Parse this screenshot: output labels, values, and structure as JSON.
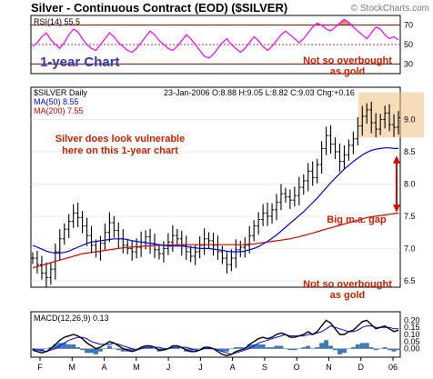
{
  "header": {
    "title": "Silver - Continuous Contract (EOD) ($SILVER)",
    "credit": "© StockCharts.com"
  },
  "chart_data": [
    {
      "panel": "rsi",
      "type": "line",
      "label": "RSI(14) 55.5",
      "ylim": [
        20,
        80
      ],
      "ticks": [
        30,
        50,
        70
      ],
      "levels": [
        30,
        70
      ],
      "color": "#ff00ff",
      "overbought_fill": "#c8966e",
      "annotations": [
        "1-year Chart",
        "Not so overbought",
        "as gold"
      ],
      "values": [
        48,
        52,
        58,
        62,
        55,
        50,
        46,
        52,
        60,
        66,
        63,
        56,
        50,
        46,
        44,
        50,
        56,
        62,
        58,
        52,
        48,
        44,
        42,
        46,
        52,
        58,
        64,
        60,
        54,
        50,
        46,
        44,
        48,
        54,
        60,
        56,
        50,
        44,
        38,
        36,
        40,
        46,
        52,
        56,
        50,
        46,
        42,
        46,
        52,
        58,
        54,
        48,
        44,
        48,
        54,
        60,
        64,
        60,
        56,
        52,
        56,
        62,
        68,
        72,
        70,
        66,
        64,
        68,
        72,
        76,
        73,
        68,
        64,
        60,
        56,
        62,
        68,
        66,
        60,
        56,
        58,
        55
      ]
    },
    {
      "panel": "price",
      "type": "bar",
      "legend": [
        "$SILVER Daily",
        "MA(50) 8.55",
        "MA(200) 7.55"
      ],
      "quote": "23-Jan-2006  O:8.88  H:9.05  L:8.82  C:9.03  Chg:+0.16",
      "ylim": [
        6.4,
        9.5
      ],
      "ticks": [
        6.5,
        7.0,
        7.5,
        8.0,
        8.5,
        9.0
      ],
      "colors": {
        "price": "#000000",
        "ma50": "#0000ff",
        "ma200": "#dd0000",
        "annotation": "#cc2200",
        "highlight": "#f0c080"
      },
      "annotations": [
        "Silver does look vulnerable",
        "here on this 1-year chart",
        "Big m.a. gap"
      ],
      "close": [
        6.85,
        6.75,
        6.62,
        6.55,
        6.68,
        6.95,
        7.15,
        7.3,
        7.42,
        7.55,
        7.48,
        7.35,
        7.2,
        7.05,
        6.95,
        7.08,
        7.25,
        7.4,
        7.28,
        7.15,
        7.05,
        7.0,
        6.95,
        7.02,
        7.1,
        7.18,
        7.08,
        6.98,
        6.92,
        7.0,
        7.1,
        7.2,
        7.15,
        7.05,
        6.95,
        6.88,
        6.95,
        7.05,
        7.15,
        7.12,
        7.05,
        6.95,
        6.85,
        6.75,
        6.85,
        6.98,
        7.02,
        7.05,
        7.2,
        7.35,
        7.45,
        7.55,
        7.5,
        7.6,
        7.72,
        7.85,
        7.8,
        7.75,
        7.82,
        7.95,
        8.05,
        8.2,
        8.1,
        8.3,
        8.55,
        8.75,
        8.62,
        8.5,
        8.35,
        8.45,
        8.6,
        8.7,
        8.9,
        9.05,
        9.15,
        8.95,
        8.85,
        9.0,
        9.1,
        8.92,
        8.88,
        9.03
      ],
      "ma50": [
        7.05,
        7.02,
        6.99,
        6.96,
        6.94,
        6.93,
        6.93,
        6.94,
        6.96,
        6.99,
        7.02,
        7.05,
        7.08,
        7.1,
        7.11,
        7.12,
        7.13,
        7.14,
        7.15,
        7.15,
        7.15,
        7.14,
        7.12,
        7.11,
        7.1,
        7.09,
        7.08,
        7.07,
        7.06,
        7.05,
        7.04,
        7.04,
        7.04,
        7.04,
        7.03,
        7.02,
        7.01,
        7.0,
        7.0,
        7.0,
        6.99,
        6.98,
        6.97,
        6.96,
        6.95,
        6.95,
        6.95,
        6.96,
        6.98,
        7.0,
        7.03,
        7.07,
        7.11,
        7.16,
        7.21,
        7.27,
        7.33,
        7.39,
        7.45,
        7.51,
        7.57,
        7.64,
        7.71,
        7.78,
        7.86,
        7.94,
        8.02,
        8.09,
        8.16,
        8.23,
        8.29,
        8.35,
        8.4,
        8.45,
        8.49,
        8.52,
        8.54,
        8.55,
        8.56,
        8.56,
        8.55,
        8.55
      ],
      "ma200": [
        6.7,
        6.72,
        6.74,
        6.76,
        6.78,
        6.8,
        6.82,
        6.84,
        6.86,
        6.88,
        6.9,
        6.92,
        6.93,
        6.94,
        6.95,
        6.96,
        6.97,
        6.98,
        6.99,
        7.0,
        7.01,
        7.02,
        7.02,
        7.03,
        7.03,
        7.04,
        7.04,
        7.05,
        7.05,
        7.05,
        7.05,
        7.06,
        7.06,
        7.06,
        7.06,
        7.06,
        7.06,
        7.06,
        7.06,
        7.06,
        7.06,
        7.06,
        7.06,
        7.06,
        7.06,
        7.06,
        7.06,
        7.06,
        7.07,
        7.07,
        7.08,
        7.09,
        7.1,
        7.11,
        7.12,
        7.13,
        7.14,
        7.15,
        7.17,
        7.18,
        7.2,
        7.22,
        7.24,
        7.26,
        7.28,
        7.3,
        7.32,
        7.34,
        7.36,
        7.38,
        7.4,
        7.42,
        7.44,
        7.46,
        7.48,
        7.49,
        7.5,
        7.51,
        7.52,
        7.53,
        7.54,
        7.55
      ]
    },
    {
      "panel": "macd",
      "type": "line",
      "label": "MACD(12,26,9) 0.13",
      "ylim": [
        -0.06,
        0.26
      ],
      "ticks": [
        0.0,
        0.05,
        0.1,
        0.15,
        0.2
      ],
      "colors": {
        "macd": "#000000",
        "signal": "#0000ff",
        "histogram": "#3a7ab8",
        "annotation": "#cc2200"
      },
      "annotations": [
        "Not so overbought",
        "as gold"
      ],
      "macd": [
        -0.01,
        -0.02,
        -0.03,
        -0.02,
        0.0,
        0.03,
        0.06,
        0.08,
        0.09,
        0.1,
        0.09,
        0.07,
        0.04,
        0.02,
        0.0,
        0.01,
        0.03,
        0.05,
        0.04,
        0.02,
        0.0,
        -0.01,
        -0.02,
        -0.01,
        0.01,
        0.02,
        0.02,
        0.01,
        -0.01,
        -0.01,
        0.0,
        0.02,
        0.02,
        0.01,
        -0.01,
        -0.02,
        -0.02,
        -0.01,
        0.01,
        0.01,
        0.0,
        -0.02,
        -0.04,
        -0.05,
        -0.04,
        -0.02,
        -0.01,
        0.0,
        0.03,
        0.05,
        0.07,
        0.08,
        0.07,
        0.08,
        0.1,
        0.11,
        0.1,
        0.08,
        0.08,
        0.09,
        0.1,
        0.12,
        0.1,
        0.12,
        0.16,
        0.2,
        0.18,
        0.14,
        0.1,
        0.1,
        0.12,
        0.13,
        0.16,
        0.19,
        0.2,
        0.17,
        0.14,
        0.15,
        0.16,
        0.14,
        0.12,
        0.13
      ],
      "signal": [
        0.0,
        -0.01,
        -0.01,
        -0.02,
        -0.01,
        0.0,
        0.02,
        0.04,
        0.06,
        0.07,
        0.08,
        0.08,
        0.07,
        0.05,
        0.04,
        0.03,
        0.03,
        0.03,
        0.04,
        0.03,
        0.02,
        0.01,
        0.0,
        -0.01,
        0.0,
        0.01,
        0.01,
        0.01,
        0.01,
        0.0,
        0.0,
        0.01,
        0.01,
        0.01,
        0.01,
        0.0,
        -0.01,
        -0.01,
        0.0,
        0.0,
        0.0,
        -0.01,
        -0.02,
        -0.03,
        -0.04,
        -0.03,
        -0.02,
        -0.01,
        0.0,
        0.02,
        0.04,
        0.05,
        0.06,
        0.07,
        0.08,
        0.09,
        0.1,
        0.09,
        0.09,
        0.09,
        0.09,
        0.1,
        0.1,
        0.11,
        0.12,
        0.14,
        0.16,
        0.15,
        0.14,
        0.13,
        0.12,
        0.12,
        0.13,
        0.15,
        0.16,
        0.16,
        0.15,
        0.15,
        0.15,
        0.15,
        0.14,
        0.14
      ]
    }
  ],
  "x_axis": {
    "months": [
      "F",
      "M",
      "A",
      "M",
      "J",
      "J",
      "A",
      "S",
      "O",
      "N",
      "D",
      "06"
    ]
  }
}
